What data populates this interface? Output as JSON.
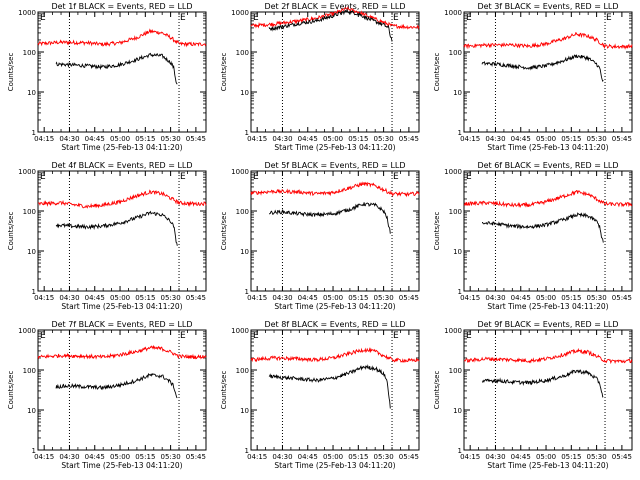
{
  "figure": {
    "xlabel": "Start Time (25-Feb-13 04:11:20)",
    "ylabel": "Counts/sec",
    "x_tick_labels": [
      "04:15",
      "04:30",
      "04:45",
      "05:00",
      "05:15",
      "05:30",
      "05:45"
    ],
    "y_tick_labels": [
      "1",
      "10",
      "100",
      "1000"
    ],
    "corner_mark_left": "E",
    "corner_mark_right": "E",
    "colors": {
      "events": "#000000",
      "lld": "#ff0000",
      "axes": "#000000",
      "background": "#ffffff"
    }
  },
  "chart_data": [
    {
      "type": "line",
      "title": "Det 1f BLACK = Events, RED = LLD",
      "x_range": [
        "04:11:20",
        "05:51"
      ],
      "ylim": [
        1,
        1000
      ],
      "y_scale": "log",
      "vertical_markers": [
        "04:30",
        "05:35"
      ],
      "series": [
        {
          "name": "LLD",
          "color": "#ff0000",
          "x": [
            "04:11:20",
            "04:25",
            "04:40",
            "04:50",
            "05:00",
            "05:10",
            "05:18",
            "05:25",
            "05:30",
            "05:35",
            "05:45",
            "05:51"
          ],
          "values": [
            160,
            175,
            170,
            155,
            170,
            230,
            330,
            300,
            230,
            160,
            155,
            160
          ]
        },
        {
          "name": "Events",
          "color": "#000000",
          "x": [
            "04:22",
            "04:30",
            "04:40",
            "04:50",
            "05:00",
            "05:10",
            "05:18",
            "05:25",
            "05:30",
            "05:32",
            "05:33",
            "05:34"
          ],
          "values": [
            50,
            48,
            45,
            42,
            48,
            65,
            85,
            80,
            55,
            40,
            20,
            15
          ]
        }
      ]
    },
    {
      "type": "line",
      "title": "Det 2f BLACK = Events, RED = LLD",
      "x_range": [
        "04:11:20",
        "05:51"
      ],
      "ylim": [
        1,
        1000
      ],
      "y_scale": "log",
      "vertical_markers": [
        "04:30",
        "05:35"
      ],
      "series": [
        {
          "name": "LLD",
          "color": "#ff0000",
          "x": [
            "04:11:20",
            "04:25",
            "04:40",
            "04:50",
            "05:00",
            "05:08",
            "05:15",
            "05:22",
            "05:30",
            "05:35",
            "05:45",
            "05:51"
          ],
          "values": [
            450,
            500,
            600,
            700,
            900,
            1200,
            1000,
            750,
            550,
            450,
            420,
            420
          ]
        },
        {
          "name": "Events",
          "color": "#000000",
          "x": [
            "04:22",
            "04:30",
            "04:40",
            "04:50",
            "05:00",
            "05:08",
            "05:15",
            "05:22",
            "05:30",
            "05:33",
            "05:34",
            "05:35"
          ],
          "values": [
            380,
            430,
            520,
            600,
            800,
            1050,
            900,
            650,
            480,
            400,
            250,
            200
          ]
        }
      ]
    },
    {
      "type": "line",
      "title": "Det 3f BLACK = Events, RED = LLD",
      "x_range": [
        "04:11:20",
        "05:51"
      ],
      "ylim": [
        1,
        1000
      ],
      "y_scale": "log",
      "vertical_markers": [
        "04:30",
        "05:35"
      ],
      "series": [
        {
          "name": "LLD",
          "color": "#ff0000",
          "x": [
            "04:11:20",
            "04:25",
            "04:40",
            "04:50",
            "05:00",
            "05:10",
            "05:18",
            "05:25",
            "05:30",
            "05:35",
            "05:45",
            "05:51"
          ],
          "values": [
            140,
            150,
            150,
            140,
            160,
            210,
            280,
            250,
            200,
            140,
            135,
            140
          ]
        },
        {
          "name": "Events",
          "color": "#000000",
          "x": [
            "04:22",
            "04:30",
            "04:40",
            "04:50",
            "05:00",
            "05:10",
            "05:18",
            "05:25",
            "05:30",
            "05:32",
            "05:33",
            "05:34"
          ],
          "values": [
            52,
            50,
            45,
            40,
            45,
            60,
            80,
            70,
            50,
            38,
            22,
            18
          ]
        }
      ]
    },
    {
      "type": "line",
      "title": "Det 4f BLACK = Events, RED = LLD",
      "x_range": [
        "04:11:20",
        "05:51"
      ],
      "ylim": [
        1,
        1000
      ],
      "y_scale": "log",
      "vertical_markers": [
        "04:30",
        "05:35"
      ],
      "series": [
        {
          "name": "LLD",
          "color": "#ff0000",
          "x": [
            "04:11:20",
            "04:25",
            "04:40",
            "04:50",
            "05:00",
            "05:10",
            "05:18",
            "05:25",
            "05:30",
            "05:35",
            "05:45",
            "05:51"
          ],
          "values": [
            150,
            160,
            130,
            140,
            170,
            240,
            300,
            270,
            210,
            160,
            150,
            155
          ]
        },
        {
          "name": "Events",
          "color": "#000000",
          "x": [
            "04:22",
            "04:30",
            "04:40",
            "04:50",
            "05:00",
            "05:10",
            "05:18",
            "05:25",
            "05:30",
            "05:32",
            "05:33",
            "05:34"
          ],
          "values": [
            45,
            42,
            40,
            42,
            50,
            68,
            90,
            80,
            55,
            40,
            20,
            14
          ]
        }
      ]
    },
    {
      "type": "line",
      "title": "Det 5f BLACK = Events, RED = LLD",
      "x_range": [
        "04:11:20",
        "05:51"
      ],
      "ylim": [
        1,
        1000
      ],
      "y_scale": "log",
      "vertical_markers": [
        "04:30",
        "05:35"
      ],
      "series": [
        {
          "name": "LLD",
          "color": "#ff0000",
          "x": [
            "04:11:20",
            "04:25",
            "04:40",
            "04:50",
            "05:00",
            "05:10",
            "05:18",
            "05:25",
            "05:30",
            "05:35",
            "05:45",
            "05:51"
          ],
          "values": [
            280,
            310,
            300,
            270,
            290,
            380,
            480,
            430,
            340,
            270,
            260,
            280
          ]
        },
        {
          "name": "Events",
          "color": "#000000",
          "x": [
            "04:22",
            "04:30",
            "04:40",
            "04:50",
            "05:00",
            "05:10",
            "05:18",
            "05:25",
            "05:30",
            "05:32",
            "05:33",
            "05:34"
          ],
          "values": [
            90,
            95,
            85,
            80,
            85,
            110,
            150,
            140,
            100,
            70,
            40,
            30
          ]
        }
      ]
    },
    {
      "type": "line",
      "title": "Det 6f BLACK = Events, RED = LLD",
      "x_range": [
        "04:11:20",
        "05:51"
      ],
      "ylim": [
        1,
        1000
      ],
      "y_scale": "log",
      "vertical_markers": [
        "04:30",
        "05:35"
      ],
      "series": [
        {
          "name": "LLD",
          "color": "#ff0000",
          "x": [
            "04:11:20",
            "04:25",
            "04:40",
            "04:50",
            "05:00",
            "05:10",
            "05:18",
            "05:25",
            "05:30",
            "05:35",
            "05:45",
            "05:51"
          ],
          "values": [
            150,
            160,
            140,
            140,
            170,
            230,
            300,
            260,
            200,
            150,
            145,
            150
          ]
        },
        {
          "name": "Events",
          "color": "#000000",
          "x": [
            "04:22",
            "04:30",
            "04:40",
            "04:50",
            "05:00",
            "05:10",
            "05:18",
            "05:25",
            "05:30",
            "05:32",
            "05:33",
            "05:34"
          ],
          "values": [
            50,
            48,
            42,
            40,
            45,
            60,
            80,
            75,
            55,
            40,
            22,
            16
          ]
        }
      ]
    },
    {
      "type": "line",
      "title": "Det 7f BLACK = Events, RED = LLD",
      "x_range": [
        "04:11:20",
        "05:51"
      ],
      "ylim": [
        1,
        1000
      ],
      "y_scale": "log",
      "vertical_markers": [
        "04:30",
        "05:35"
      ],
      "series": [
        {
          "name": "LLD",
          "color": "#ff0000",
          "x": [
            "04:11:20",
            "04:25",
            "04:40",
            "04:50",
            "05:00",
            "05:10",
            "05:18",
            "05:25",
            "05:30",
            "05:35",
            "05:45",
            "05:51"
          ],
          "values": [
            210,
            230,
            220,
            210,
            240,
            290,
            360,
            340,
            280,
            220,
            210,
            220
          ]
        },
        {
          "name": "Events",
          "color": "#000000",
          "x": [
            "04:22",
            "04:30",
            "04:40",
            "04:50",
            "05:00",
            "05:10",
            "05:18",
            "05:25",
            "05:30",
            "05:32",
            "05:33",
            "05:34"
          ],
          "values": [
            38,
            40,
            38,
            36,
            42,
            55,
            75,
            70,
            50,
            38,
            25,
            20
          ]
        }
      ]
    },
    {
      "type": "line",
      "title": "Det 8f BLACK = Events, RED = LLD",
      "x_range": [
        "04:11:20",
        "05:51"
      ],
      "ylim": [
        1,
        1000
      ],
      "y_scale": "log",
      "vertical_markers": [
        "04:30",
        "05:35"
      ],
      "series": [
        {
          "name": "LLD",
          "color": "#ff0000",
          "x": [
            "04:11:20",
            "04:25",
            "04:40",
            "04:50",
            "05:00",
            "05:10",
            "05:18",
            "05:25",
            "05:30",
            "05:35",
            "05:45",
            "05:51"
          ],
          "values": [
            180,
            200,
            190,
            180,
            200,
            260,
            320,
            290,
            230,
            180,
            170,
            180
          ]
        },
        {
          "name": "Events",
          "color": "#000000",
          "x": [
            "04:22",
            "04:30",
            "04:40",
            "04:50",
            "05:00",
            "05:10",
            "05:18",
            "05:25",
            "05:30",
            "05:32",
            "05:33",
            "05:34"
          ],
          "values": [
            70,
            65,
            60,
            55,
            62,
            85,
            120,
            110,
            80,
            55,
            25,
            12
          ]
        }
      ]
    },
    {
      "type": "line",
      "title": "Det 9f BLACK = Events, RED = LLD",
      "x_range": [
        "04:11:20",
        "05:51"
      ],
      "ylim": [
        1,
        1000
      ],
      "y_scale": "log",
      "vertical_markers": [
        "04:30",
        "05:35"
      ],
      "series": [
        {
          "name": "LLD",
          "color": "#ff0000",
          "x": [
            "04:11:20",
            "04:25",
            "04:40",
            "04:50",
            "05:00",
            "05:10",
            "05:18",
            "05:25",
            "05:30",
            "05:35",
            "05:45",
            "05:51"
          ],
          "values": [
            170,
            190,
            180,
            170,
            190,
            240,
            300,
            280,
            220,
            170,
            165,
            170
          ]
        },
        {
          "name": "Events",
          "color": "#000000",
          "x": [
            "04:22",
            "04:30",
            "04:40",
            "04:50",
            "05:00",
            "05:10",
            "05:18",
            "05:25",
            "05:30",
            "05:32",
            "05:33",
            "05:34"
          ],
          "values": [
            52,
            55,
            50,
            48,
            55,
            70,
            95,
            85,
            60,
            45,
            28,
            20
          ]
        }
      ]
    }
  ]
}
